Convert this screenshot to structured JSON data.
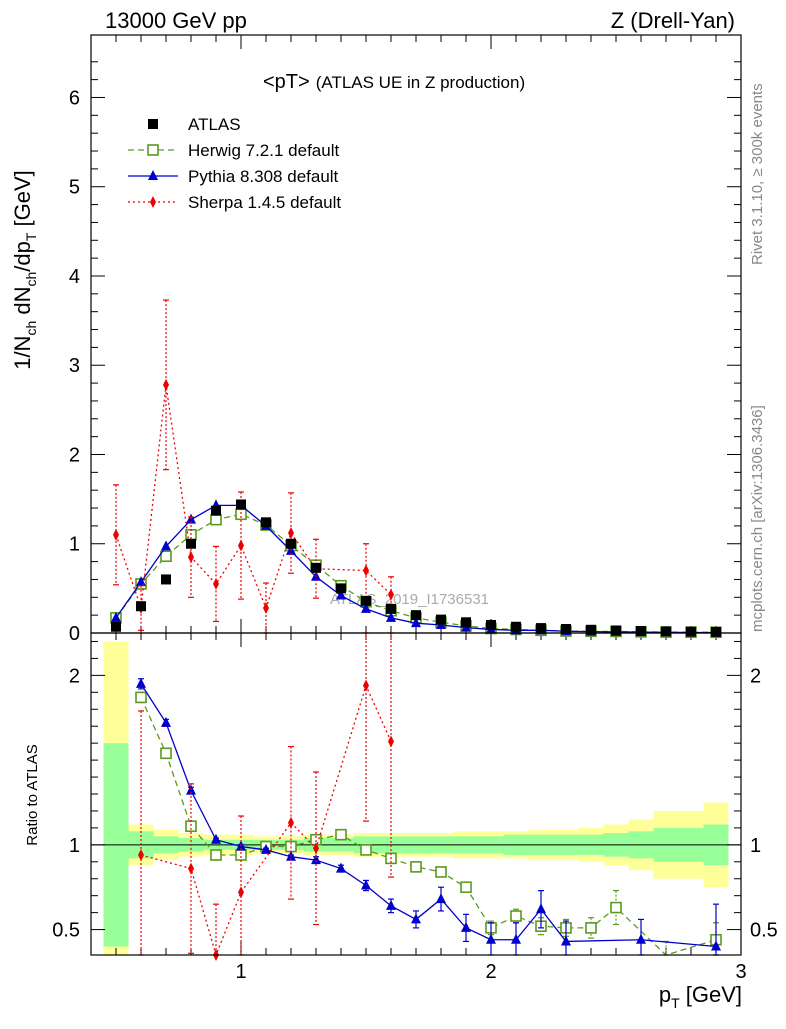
{
  "header": {
    "left": "13000 GeV pp",
    "right": "Z (Drell-Yan)"
  },
  "side_labels": {
    "rivet": "Rivet 3.1.10, ≥ 300k events",
    "mcplots": "mcplots.cern.ch [arXiv:1306.3436]"
  },
  "watermark": "ATLAS_2019_I1736531",
  "chart_data": [
    {
      "type": "line",
      "title": "<pT> (ATLAS UE in Z production)",
      "title_main": "<pT>",
      "title_sub": "(ATLAS UE in Z production)",
      "xlabel": "p_T [GeV]",
      "ylabel": "1/N_ch dN_ch/dp_T [GeV]",
      "xlim": [
        0.4,
        3.0
      ],
      "ylim": [
        0,
        6.7
      ],
      "y_ticks": [
        "0",
        "1",
        "2",
        "3",
        "4",
        "5",
        "6"
      ],
      "legend": [
        "ATLAS",
        "Herwig 7.2.1 default",
        "Pythia 8.308 default",
        "Sherpa 1.4.5 default"
      ],
      "legend_position": "top-left",
      "series": [
        {
          "name": "ATLAS",
          "color": "#000000",
          "marker": "square",
          "x": [
            0.5,
            0.6,
            0.7,
            0.8,
            0.9,
            1.0,
            1.1,
            1.2,
            1.3,
            1.4,
            1.5,
            1.6,
            1.7,
            1.8,
            1.9,
            2.0,
            2.1,
            2.2,
            2.3,
            2.4,
            2.5,
            2.6,
            2.7,
            2.8,
            2.9
          ],
          "values": [
            0.07,
            0.3,
            0.6,
            1.0,
            1.37,
            1.44,
            1.24,
            1.0,
            0.73,
            0.5,
            0.36,
            0.27,
            0.2,
            0.15,
            0.12,
            0.09,
            0.07,
            0.055,
            0.045,
            0.036,
            0.028,
            0.022,
            0.018,
            0.015,
            0.012
          ]
        },
        {
          "name": "Herwig 7.2.1 default",
          "color": "#5a9a1e",
          "marker": "open-square",
          "x": [
            0.5,
            0.6,
            0.7,
            0.8,
            0.9,
            1.0,
            1.1,
            1.2,
            1.3,
            1.4,
            1.5,
            1.6,
            1.7,
            1.8,
            1.9,
            2.0,
            2.1,
            2.2,
            2.3,
            2.4,
            2.5,
            2.6,
            2.7,
            2.8,
            2.9
          ],
          "values": [
            0.17,
            0.55,
            0.86,
            1.1,
            1.27,
            1.33,
            1.21,
            0.98,
            0.76,
            0.53,
            0.35,
            0.25,
            0.17,
            0.12,
            0.08,
            0.05,
            0.04,
            0.03,
            0.022,
            0.019,
            0.017,
            0.013,
            0.01,
            0.009,
            0.008
          ]
        },
        {
          "name": "Pythia 8.308 default",
          "color": "#0000cc",
          "marker": "triangle",
          "x": [
            0.5,
            0.6,
            0.7,
            0.8,
            0.9,
            1.0,
            1.1,
            1.2,
            1.3,
            1.4,
            1.5,
            1.6,
            1.7,
            1.8,
            1.9,
            2.0,
            2.1,
            2.2,
            2.3,
            2.4,
            2.5,
            2.6,
            2.7,
            2.8,
            2.9
          ],
          "values": [
            0.17,
            0.57,
            0.97,
            1.27,
            1.43,
            1.43,
            1.2,
            0.92,
            0.63,
            0.42,
            0.27,
            0.17,
            0.11,
            0.09,
            0.06,
            0.04,
            0.03,
            0.03,
            0.02,
            0.015,
            0.012,
            0.01,
            0.008,
            0.006,
            0.005
          ]
        },
        {
          "name": "Sherpa 1.4.5 default",
          "color": "#ee0000",
          "marker": "diamond",
          "x": [
            0.5,
            0.6,
            0.7,
            0.8,
            0.9,
            1.0,
            1.1,
            1.2,
            1.3,
            1.5,
            1.6
          ],
          "values": [
            1.1,
            0.28,
            2.78,
            0.85,
            0.55,
            0.98,
            0.28,
            1.12,
            0.72,
            0.7,
            0.43
          ],
          "err": [
            0.56,
            0.25,
            0.95,
            0.45,
            0.42,
            0.6,
            0.28,
            0.45,
            0.33,
            0.3,
            0.2
          ]
        }
      ]
    },
    {
      "type": "line",
      "title": "Ratio to ATLAS",
      "xlabel": "p_T [GeV]",
      "ylabel": "Ratio to ATLAS",
      "xlim": [
        0.4,
        3.0
      ],
      "ylim": [
        0.35,
        2.25
      ],
      "x_ticks": [
        "1",
        "2",
        "3"
      ],
      "y_ticks": [
        "0.5",
        "1",
        "2"
      ],
      "reference": 1.0,
      "band_edges": [
        0.45,
        0.55,
        0.65,
        0.75,
        0.85,
        0.95,
        1.05,
        1.15,
        1.25,
        1.35,
        1.45,
        1.55,
        1.65,
        1.75,
        1.85,
        1.95,
        2.05,
        2.15,
        2.25,
        2.35,
        2.45,
        2.55,
        2.65,
        2.75,
        2.85,
        2.95
      ],
      "stat_band": [
        0.6,
        0.08,
        0.05,
        0.04,
        0.03,
        0.03,
        0.03,
        0.03,
        0.04,
        0.04,
        0.05,
        0.05,
        0.05,
        0.05,
        0.05,
        0.05,
        0.06,
        0.06,
        0.06,
        0.06,
        0.07,
        0.08,
        0.1,
        0.1,
        0.12
      ],
      "total_band": [
        1.2,
        0.12,
        0.09,
        0.07,
        0.06,
        0.06,
        0.05,
        0.05,
        0.06,
        0.06,
        0.07,
        0.07,
        0.07,
        0.07,
        0.08,
        0.08,
        0.08,
        0.09,
        0.09,
        0.1,
        0.12,
        0.15,
        0.2,
        0.2,
        0.25
      ],
      "series": [
        {
          "name": "Herwig 7.2.1 default",
          "color": "#5a9a1e",
          "x": [
            0.6,
            0.7,
            0.8,
            0.9,
            1.0,
            1.1,
            1.2,
            1.3,
            1.4,
            1.5,
            1.6,
            1.7,
            1.8,
            1.9,
            2.0,
            2.1,
            2.2,
            2.3,
            2.4,
            2.5,
            2.7,
            2.9
          ],
          "values": [
            1.87,
            1.54,
            1.11,
            0.94,
            0.94,
            0.99,
            0.99,
            1.03,
            1.06,
            0.97,
            0.92,
            0.87,
            0.84,
            0.75,
            0.51,
            0.58,
            0.52,
            0.51,
            0.51,
            0.63,
            0.33,
            0.44
          ],
          "err": [
            0.03,
            0.02,
            0.02,
            0.01,
            0.01,
            0.01,
            0.01,
            0.01,
            0.01,
            0.01,
            0.01,
            0.02,
            0.02,
            0.03,
            0.04,
            0.04,
            0.05,
            0.05,
            0.06,
            0.1,
            0.1,
            0.1
          ]
        },
        {
          "name": "Pythia 8.308 default",
          "color": "#0000cc",
          "x": [
            0.6,
            0.7,
            0.8,
            0.9,
            1.0,
            1.1,
            1.2,
            1.3,
            1.4,
            1.5,
            1.6,
            1.7,
            1.8,
            1.9,
            2.0,
            2.1,
            2.2,
            2.3,
            2.6,
            2.9
          ],
          "values": [
            1.95,
            1.72,
            1.32,
            1.03,
            0.99,
            0.97,
            0.93,
            0.91,
            0.86,
            0.76,
            0.64,
            0.56,
            0.68,
            0.51,
            0.44,
            0.44,
            0.62,
            0.43,
            0.44,
            0.4
          ],
          "err": [
            0.03,
            0.02,
            0.02,
            0.01,
            0.01,
            0.01,
            0.01,
            0.02,
            0.02,
            0.03,
            0.04,
            0.05,
            0.07,
            0.08,
            0.1,
            0.1,
            0.11,
            0.12,
            0.12,
            0.25
          ]
        },
        {
          "name": "Sherpa 1.4.5 default",
          "color": "#ee0000",
          "x": [
            0.6,
            0.8,
            0.9,
            1.0,
            1.2,
            1.3,
            1.5,
            1.6
          ],
          "values": [
            0.94,
            0.86,
            0.35,
            0.72,
            1.13,
            0.98,
            1.94,
            1.61
          ],
          "err": [
            0.85,
            0.5,
            0.3,
            0.45,
            0.45,
            0.45,
            0.8,
            0.8
          ]
        }
      ]
    }
  ]
}
